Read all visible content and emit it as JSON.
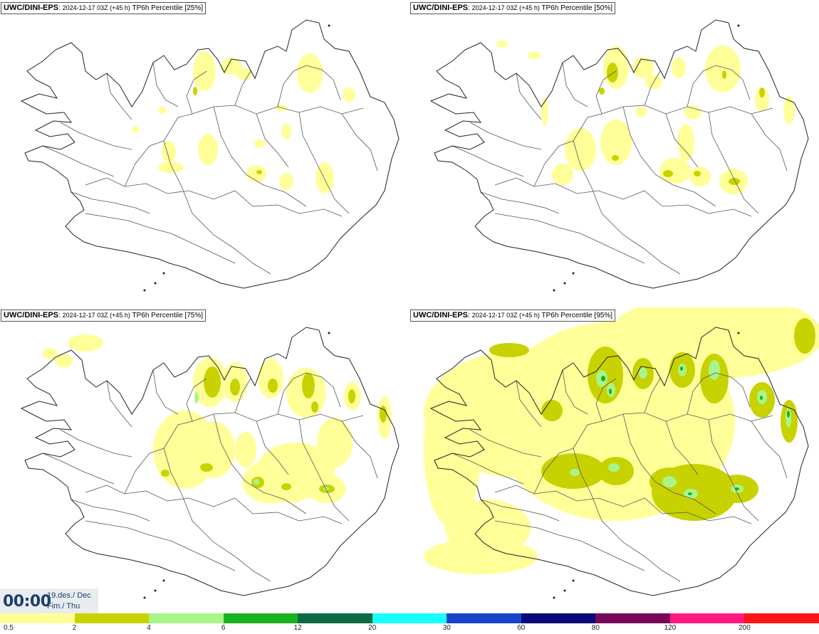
{
  "panels": [
    {
      "model": "UWC/DINI-EPS",
      "sep": ":",
      "date": "2024-12-17 03Z (+45 h)",
      "label": "TP6h Percentile [25%]"
    },
    {
      "model": "UWC/DINI-EPS",
      "sep": ":",
      "date": "2024-12-17 03Z (+45 h)",
      "label": "TP6h Percentile [50%]"
    },
    {
      "model": "UWC/DINI-EPS",
      "sep": ":",
      "date": "2024-12-17 03Z (+45 h)",
      "label": "TP6h Percentile [75%]"
    },
    {
      "model": "UWC/DINI-EPS",
      "sep": ":",
      "date": "2024-12-17 03Z (+45 h)",
      "label": "TP6h Percentile [95%]"
    }
  ],
  "valid_time": {
    "clock": "00:00",
    "date_line": "19.des./ Dec",
    "day_line": "Fim./ Thu"
  },
  "legend": {
    "colors": [
      "#ffff99",
      "#c8d200",
      "#a8f58a",
      "#19b21e",
      "#0b6b42",
      "#19ffff",
      "#1944c8",
      "#0a0a78",
      "#78075a",
      "#ff1980",
      "#ff1414"
    ],
    "labels": [
      "0.5",
      "2",
      "4",
      "6",
      "12",
      "20",
      "30",
      "60",
      "80",
      "120",
      "200"
    ]
  },
  "precip_colors": {
    "light": "#ffff99",
    "mid": "#c8d200",
    "high": "#a8f58a",
    "peak": "#19b21e"
  }
}
